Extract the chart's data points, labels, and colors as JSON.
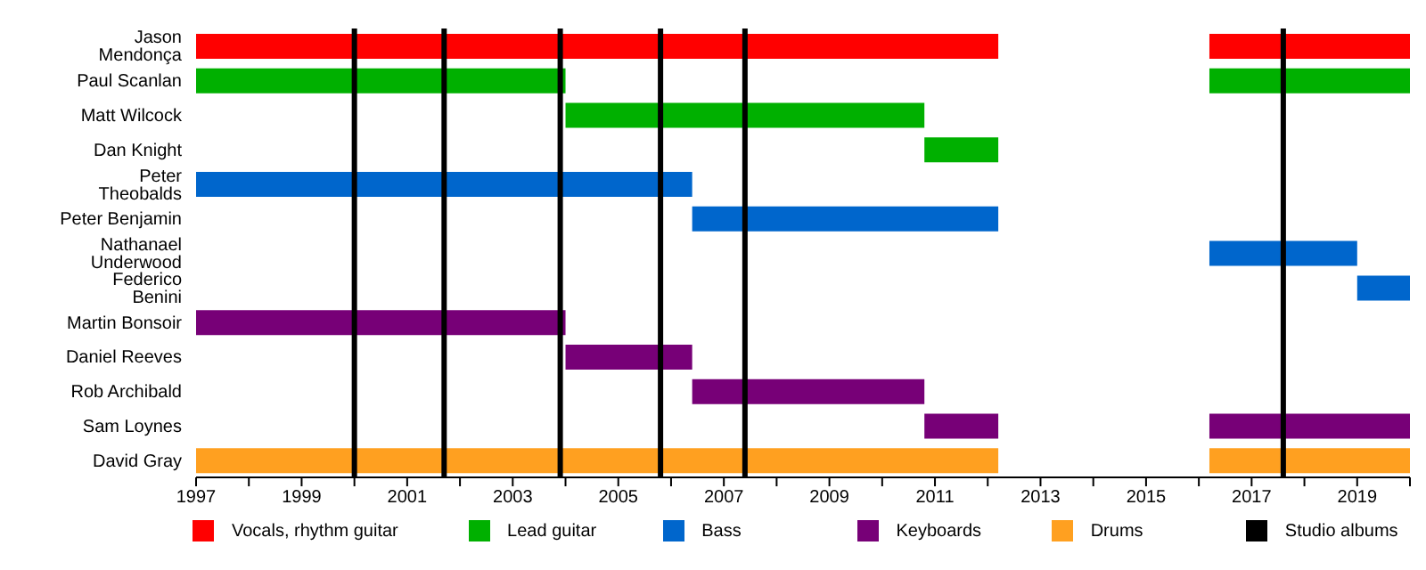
{
  "chart_data": {
    "type": "bar",
    "orientation": "horizontal",
    "categories": [
      "Jason Mendonça",
      "Paul Scanlan",
      "Matt Wilcock",
      "Dan Knight",
      "Peter Theobalds",
      "Peter Benjamin",
      "Nathanael Underwood",
      "Federico Benini",
      "Martin Bonsoir",
      "Daniel Reeves",
      "Rob Archibald",
      "Sam Loynes",
      "David Gray"
    ],
    "series": [
      {
        "name": "Vocals, rhythm guitar",
        "color": "#ff0000",
        "values": [
          15.2,
          null,
          null,
          null,
          null,
          null,
          null,
          null,
          null,
          null,
          null,
          null,
          null
        ],
        "base": [
          1997,
          null,
          null,
          null,
          null,
          null,
          null,
          null,
          null,
          null,
          null,
          null,
          null
        ]
      },
      {
        "color": "#ff0000",
        "values": [
          3.8,
          null,
          null,
          null,
          null,
          null,
          null,
          null,
          null,
          null,
          null,
          null,
          null
        ],
        "base": [
          2016.2,
          null,
          null,
          null,
          null,
          null,
          null,
          null,
          null,
          null,
          null,
          null,
          null
        ]
      },
      {
        "name": "Lead guitar",
        "color": "#00b000",
        "values": [
          null,
          7.0,
          6.8,
          1.4,
          null,
          null,
          null,
          null,
          null,
          null,
          null,
          null,
          null
        ],
        "base": [
          null,
          1997,
          2004,
          2010.8,
          null,
          null,
          null,
          null,
          null,
          null,
          null,
          null,
          null
        ]
      },
      {
        "color": "#00b000",
        "values": [
          null,
          3.8,
          null,
          null,
          null,
          null,
          null,
          null,
          null,
          null,
          null,
          null,
          null
        ],
        "base": [
          null,
          2016.2,
          null,
          null,
          null,
          null,
          null,
          null,
          null,
          null,
          null,
          null,
          null
        ]
      },
      {
        "name": "Bass",
        "color": "#0066cc",
        "values": [
          null,
          null,
          null,
          null,
          9.4,
          5.8,
          null,
          null,
          null,
          null,
          null,
          null,
          null
        ],
        "base": [
          null,
          null,
          null,
          null,
          1997,
          2006.4,
          null,
          null,
          null,
          null,
          null,
          null,
          null
        ]
      },
      {
        "color": "#0066cc",
        "values": [
          null,
          null,
          null,
          null,
          null,
          null,
          2.8,
          1.0,
          null,
          null,
          null,
          null,
          null
        ],
        "base": [
          null,
          null,
          null,
          null,
          null,
          null,
          2016.2,
          2019,
          null,
          null,
          null,
          null,
          null
        ]
      },
      {
        "name": "Keyboards",
        "color": "#770077",
        "values": [
          null,
          null,
          null,
          null,
          null,
          null,
          null,
          null,
          7.0,
          2.4,
          4.4,
          1.4,
          null
        ],
        "base": [
          null,
          null,
          null,
          null,
          null,
          null,
          null,
          null,
          1997,
          2004,
          2006.4,
          2010.8,
          null
        ]
      },
      {
        "color": "#770077",
        "values": [
          null,
          null,
          null,
          null,
          null,
          null,
          null,
          null,
          null,
          null,
          null,
          3.8,
          null
        ],
        "base": [
          null,
          null,
          null,
          null,
          null,
          null,
          null,
          null,
          null,
          null,
          null,
          2016.2,
          null
        ]
      },
      {
        "name": "Drums",
        "color": "#ffa020",
        "values": [
          null,
          null,
          null,
          null,
          null,
          null,
          null,
          null,
          null,
          null,
          null,
          null,
          15.2
        ],
        "base": [
          null,
          null,
          null,
          null,
          null,
          null,
          null,
          null,
          null,
          null,
          null,
          null,
          1997
        ]
      },
      {
        "color": "#ffa020",
        "values": [
          null,
          null,
          null,
          null,
          null,
          null,
          null,
          null,
          null,
          null,
          null,
          null,
          3.8
        ],
        "base": [
          null,
          null,
          null,
          null,
          null,
          null,
          null,
          null,
          null,
          null,
          null,
          null,
          2016.2
        ]
      }
    ],
    "ref_lines": [
      {
        "axis": "x",
        "value": 2000.0,
        "label": "Studio albums",
        "color": "#000000"
      },
      {
        "axis": "x",
        "value": 2001.7,
        "color": "#000000"
      },
      {
        "axis": "x",
        "value": 2003.9,
        "color": "#000000"
      },
      {
        "axis": "x",
        "value": 2005.8,
        "color": "#000000"
      },
      {
        "axis": "x",
        "value": 2007.4,
        "color": "#000000"
      },
      {
        "axis": "x",
        "value": 2017.6,
        "color": "#000000"
      }
    ],
    "xlim": [
      1997,
      2020
    ],
    "xticks": [
      1997,
      {
        "value": 1998,
        "label": null
      },
      1999,
      {
        "value": 2000,
        "label": null
      },
      2001,
      {
        "value": 2002,
        "label": null
      },
      2003,
      {
        "value": 2004,
        "label": null
      },
      2005,
      {
        "value": 2006,
        "label": null
      },
      2007,
      {
        "value": 2008,
        "label": null
      },
      2009,
      {
        "value": 2010,
        "label": null
      },
      2011,
      {
        "value": 2012,
        "label": null
      },
      2013,
      {
        "value": 2014,
        "label": null
      },
      2015,
      {
        "value": 2016,
        "label": null
      },
      2017,
      {
        "value": 2018,
        "label": null
      },
      2019,
      {
        "value": 2020,
        "label": null
      }
    ],
    "grid": false,
    "legend": "bottom"
  }
}
